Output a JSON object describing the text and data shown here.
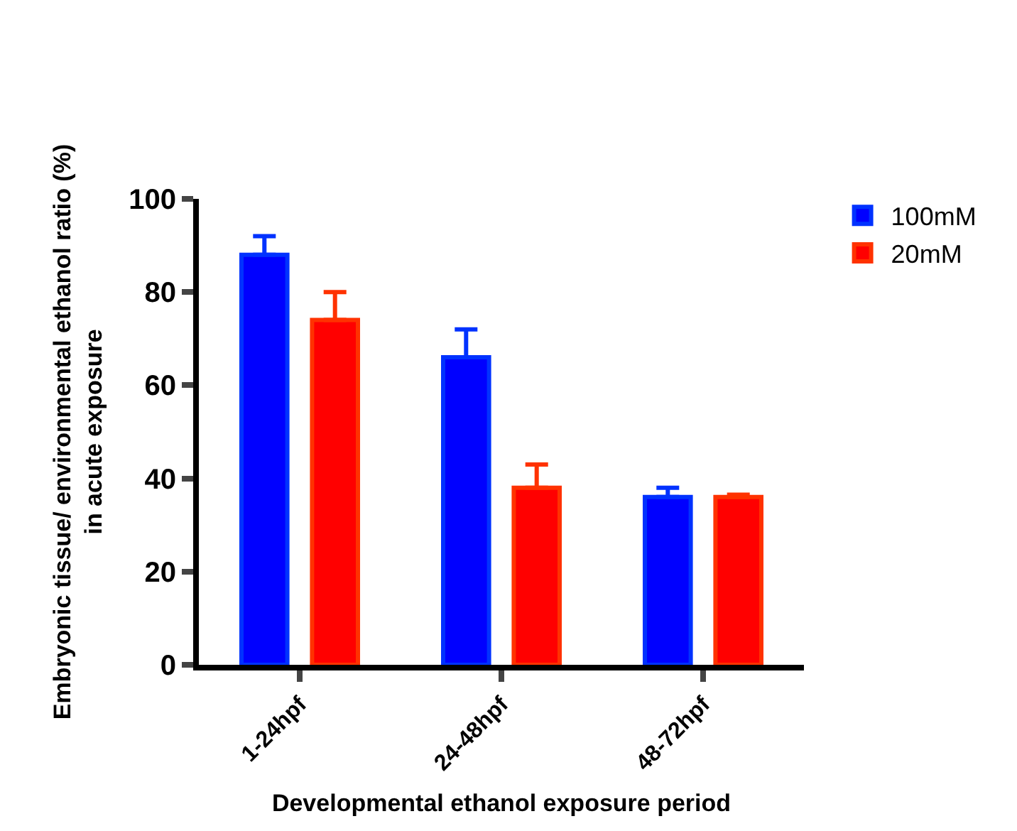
{
  "chart_data": {
    "type": "bar",
    "xlabel": "Developmental ethanol exposure period",
    "ylabel": "Embryonic tissue/ environmental ethanol ratio (%)\nin acute exposure",
    "categories": [
      "1-24hpf",
      "24-48hpf",
      "48-72hpf"
    ],
    "series": [
      {
        "name": "100mM",
        "color": "#0000ff",
        "values": [
          88,
          66,
          36
        ],
        "errors": [
          [
            88,
            92
          ],
          [
            66,
            72
          ],
          [
            36,
            38
          ]
        ]
      },
      {
        "name": "20mM",
        "color": "#ff0000",
        "values": [
          74,
          38,
          36
        ],
        "errors": [
          [
            74,
            80
          ],
          [
            38,
            43
          ],
          [
            36,
            36.5
          ]
        ]
      }
    ],
    "ylim": [
      0,
      100
    ],
    "yticks": [
      0,
      20,
      40,
      60,
      80,
      100
    ],
    "legend": "top right"
  }
}
